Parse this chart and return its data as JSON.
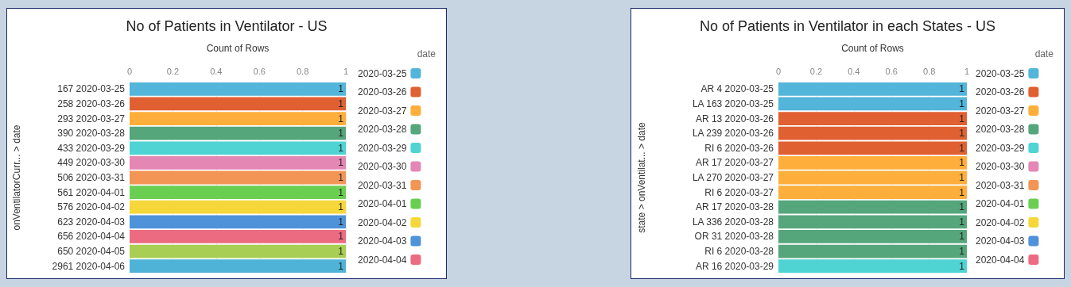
{
  "chart_data": [
    {
      "type": "bar",
      "orientation": "horizontal",
      "title": "No of Patients in Ventilator - US",
      "xlabel": "Count of Rows",
      "ylabel": "onVentilatorCurr... > date",
      "legend_title": "date",
      "legend": "right",
      "grid": "x",
      "data_labels": true,
      "xlim": [
        0,
        1
      ],
      "xticks": [
        0,
        0.2,
        0.4,
        0.6,
        0.8,
        1
      ],
      "categories": [
        "167 2020-03-25",
        "258 2020-03-26",
        "293 2020-03-27",
        "390 2020-03-28",
        "433 2020-03-29",
        "449 2020-03-30",
        "506 2020-03-31",
        "561 2020-04-01",
        "576 2020-04-02",
        "623 2020-04-03",
        "656 2020-04-04",
        "650 2020-04-05",
        "2961 2020-04-06"
      ],
      "series": [
        {
          "name": "2020-03-25",
          "color": "#52b5d9",
          "values": [
            1,
            null,
            null,
            null,
            null,
            null,
            null,
            null,
            null,
            null,
            null,
            null,
            null
          ]
        },
        {
          "name": "2020-03-26",
          "color": "#e06032",
          "values": [
            null,
            1,
            null,
            null,
            null,
            null,
            null,
            null,
            null,
            null,
            null,
            null,
            null
          ]
        },
        {
          "name": "2020-03-27",
          "color": "#feae3a",
          "values": [
            null,
            null,
            1,
            null,
            null,
            null,
            null,
            null,
            null,
            null,
            null,
            null,
            null
          ]
        },
        {
          "name": "2020-03-28",
          "color": "#55a67b",
          "values": [
            null,
            null,
            null,
            1,
            null,
            null,
            null,
            null,
            null,
            null,
            null,
            null,
            null
          ]
        },
        {
          "name": "2020-03-29",
          "color": "#4fd3d3",
          "values": [
            null,
            null,
            null,
            null,
            1,
            null,
            null,
            null,
            null,
            null,
            null,
            null,
            null
          ]
        },
        {
          "name": "2020-03-30",
          "color": "#e487b4",
          "values": [
            null,
            null,
            null,
            null,
            null,
            1,
            null,
            null,
            null,
            null,
            null,
            null,
            null
          ]
        },
        {
          "name": "2020-03-31",
          "color": "#f29555",
          "values": [
            null,
            null,
            null,
            null,
            null,
            null,
            1,
            null,
            null,
            null,
            null,
            null,
            null
          ]
        },
        {
          "name": "2020-04-01",
          "color": "#6acf51",
          "values": [
            null,
            null,
            null,
            null,
            null,
            null,
            null,
            1,
            null,
            null,
            null,
            null,
            null
          ]
        },
        {
          "name": "2020-04-02",
          "color": "#f5d73a",
          "values": [
            null,
            null,
            null,
            null,
            null,
            null,
            null,
            null,
            1,
            null,
            null,
            null,
            null
          ]
        },
        {
          "name": "2020-04-03",
          "color": "#4e93da",
          "values": [
            null,
            null,
            null,
            null,
            null,
            null,
            null,
            null,
            null,
            1,
            null,
            null,
            null
          ]
        },
        {
          "name": "2020-04-04",
          "color": "#ec6b80",
          "values": [
            null,
            null,
            null,
            null,
            null,
            null,
            null,
            null,
            null,
            null,
            1,
            null,
            null
          ]
        },
        {
          "color": "#a8cf53",
          "values": [
            null,
            null,
            null,
            null,
            null,
            null,
            null,
            null,
            null,
            null,
            null,
            1,
            null
          ]
        },
        {
          "color": "#4fb3d8",
          "values": [
            null,
            null,
            null,
            null,
            null,
            null,
            null,
            null,
            null,
            null,
            null,
            null,
            1
          ]
        }
      ]
    },
    {
      "type": "bar",
      "orientation": "horizontal",
      "title": "No of Patients in Ventilator in each States - US",
      "xlabel": "Count of Rows",
      "ylabel": "state > onVentilat... > date",
      "legend_title": "date",
      "legend": "right",
      "grid": "x",
      "data_labels": true,
      "xlim": [
        0,
        1
      ],
      "xticks": [
        0,
        0.2,
        0.4,
        0.6,
        0.8,
        1
      ],
      "categories": [
        "AR 4 2020-03-25",
        "LA 163 2020-03-25",
        "AR 13 2020-03-26",
        "LA 239 2020-03-26",
        "RI 6 2020-03-26",
        "AR 17 2020-03-27",
        "LA 270 2020-03-27",
        "RI 6 2020-03-27",
        "AR 17 2020-03-28",
        "LA 336 2020-03-28",
        "OR 31 2020-03-28",
        "RI 6 2020-03-28",
        "AR 16 2020-03-29"
      ],
      "series": [
        {
          "name": "2020-03-25",
          "color": "#52b5d9",
          "values": [
            1,
            1,
            null,
            null,
            null,
            null,
            null,
            null,
            null,
            null,
            null,
            null,
            null
          ]
        },
        {
          "name": "2020-03-26",
          "color": "#e06032",
          "values": [
            null,
            null,
            1,
            1,
            1,
            null,
            null,
            null,
            null,
            null,
            null,
            null,
            null
          ]
        },
        {
          "name": "2020-03-27",
          "color": "#feae3a",
          "values": [
            null,
            null,
            null,
            null,
            null,
            1,
            1,
            1,
            null,
            null,
            null,
            null,
            null
          ]
        },
        {
          "name": "2020-03-28",
          "color": "#55a67b",
          "values": [
            null,
            null,
            null,
            null,
            null,
            null,
            null,
            null,
            1,
            1,
            1,
            1,
            null
          ]
        },
        {
          "name": "2020-03-29",
          "color": "#4fd3d3",
          "values": [
            null,
            null,
            null,
            null,
            null,
            null,
            null,
            null,
            null,
            null,
            null,
            null,
            1
          ]
        },
        {
          "name": "2020-03-30",
          "color": "#e487b4",
          "values": [
            null,
            null,
            null,
            null,
            null,
            null,
            null,
            null,
            null,
            null,
            null,
            null,
            null
          ]
        },
        {
          "name": "2020-03-31",
          "color": "#f29555",
          "values": [
            null,
            null,
            null,
            null,
            null,
            null,
            null,
            null,
            null,
            null,
            null,
            null,
            null
          ]
        },
        {
          "name": "2020-04-01",
          "color": "#6acf51",
          "values": [
            null,
            null,
            null,
            null,
            null,
            null,
            null,
            null,
            null,
            null,
            null,
            null,
            null
          ]
        },
        {
          "name": "2020-04-02",
          "color": "#f5d73a",
          "values": [
            null,
            null,
            null,
            null,
            null,
            null,
            null,
            null,
            null,
            null,
            null,
            null,
            null
          ]
        },
        {
          "name": "2020-04-03",
          "color": "#4e93da",
          "values": [
            null,
            null,
            null,
            null,
            null,
            null,
            null,
            null,
            null,
            null,
            null,
            null,
            null
          ]
        },
        {
          "name": "2020-04-04",
          "color": "#ec6b80",
          "values": [
            null,
            null,
            null,
            null,
            null,
            null,
            null,
            null,
            null,
            null,
            null,
            null,
            null
          ]
        }
      ]
    }
  ]
}
